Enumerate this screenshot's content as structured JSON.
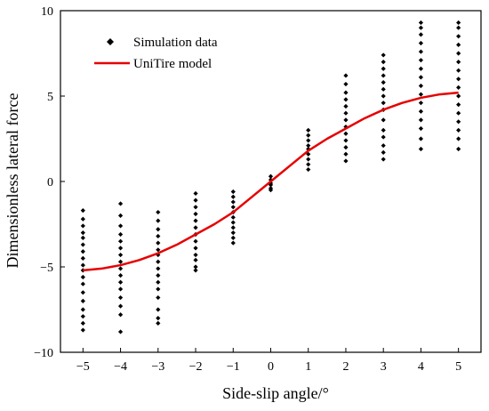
{
  "chart_data": {
    "type": "scatter",
    "title": "",
    "xlabel": "Side-slip angle/°",
    "ylabel": "Dimensionless lateral force",
    "xlim": [
      -5.6,
      5.6
    ],
    "ylim": [
      -10,
      10
    ],
    "xticks": [
      -5,
      -4,
      -3,
      -2,
      -1,
      0,
      1,
      2,
      3,
      4,
      5
    ],
    "yticks": [
      -10,
      -5,
      0,
      5,
      10
    ],
    "grid": false,
    "legend_position": "top-left",
    "series": [
      {
        "name": "Simulation data",
        "kind": "scatter",
        "color": "#000000",
        "groups": [
          {
            "x": -5,
            "y": [
              -1.7,
              -2.2,
              -2.6,
              -3.0,
              -3.3,
              -3.7,
              -4.1,
              -4.5,
              -4.9,
              -5.2,
              -5.6,
              -6.0,
              -6.5,
              -7.0,
              -7.5,
              -7.9,
              -8.3,
              -8.7
            ]
          },
          {
            "x": -4,
            "y": [
              -1.3,
              -2.0,
              -2.6,
              -3.1,
              -3.5,
              -3.9,
              -4.3,
              -4.7,
              -5.1,
              -5.5,
              -5.9,
              -6.3,
              -6.8,
              -7.3,
              -7.8,
              -8.8
            ]
          },
          {
            "x": -3,
            "y": [
              -1.8,
              -2.3,
              -2.8,
              -3.2,
              -3.6,
              -4.0,
              -4.3,
              -4.7,
              -5.1,
              -5.5,
              -5.9,
              -6.3,
              -6.8,
              -7.5,
              -8.0,
              -8.3
            ]
          },
          {
            "x": -2,
            "y": [
              -0.7,
              -1.1,
              -1.5,
              -1.9,
              -2.3,
              -2.7,
              -3.1,
              -3.5,
              -3.9,
              -4.3,
              -4.6,
              -5.0,
              -5.2
            ]
          },
          {
            "x": -1,
            "y": [
              -0.6,
              -0.9,
              -1.2,
              -1.5,
              -1.8,
              -2.1,
              -2.4,
              -2.7,
              -3.0,
              -3.3,
              -3.6
            ]
          },
          {
            "x": 0,
            "y": [
              0.3,
              0.1,
              -0.1,
              -0.2,
              -0.4,
              -0.5
            ]
          },
          {
            "x": 1,
            "y": [
              0.7,
              1.0,
              1.3,
              1.6,
              1.9,
              2.1,
              2.4,
              2.7,
              3.0
            ]
          },
          {
            "x": 2,
            "y": [
              1.2,
              1.6,
              2.0,
              2.4,
              2.8,
              3.2,
              3.6,
              4.0,
              4.4,
              4.8,
              5.2,
              5.7,
              6.2
            ]
          },
          {
            "x": 3,
            "y": [
              1.3,
              1.7,
              2.1,
              2.6,
              3.0,
              3.6,
              4.2,
              4.6,
              5.0,
              5.4,
              5.8,
              6.2,
              6.6,
              7.0,
              7.4
            ]
          },
          {
            "x": 4,
            "y": [
              1.9,
              2.5,
              3.1,
              3.6,
              4.1,
              4.6,
              5.1,
              5.6,
              6.1,
              6.6,
              7.1,
              7.6,
              8.1,
              8.6,
              9.0,
              9.3
            ]
          },
          {
            "x": 5,
            "y": [
              1.9,
              2.5,
              3.0,
              3.5,
              4.0,
              4.5,
              5.0,
              5.5,
              6.0,
              6.5,
              7.0,
              7.5,
              8.0,
              8.5,
              9.0,
              9.3
            ]
          }
        ]
      },
      {
        "name": "UniTire model",
        "kind": "line",
        "color": "#e60000",
        "x": [
          -5,
          -4.5,
          -4,
          -3.5,
          -3,
          -2.5,
          -2,
          -1.5,
          -1,
          -0.5,
          0,
          0.5,
          1,
          1.5,
          2,
          2.5,
          3,
          3.5,
          4,
          4.5,
          5
        ],
        "y": [
          -5.2,
          -5.1,
          -4.9,
          -4.6,
          -4.2,
          -3.7,
          -3.1,
          -2.5,
          -1.8,
          -0.9,
          0.0,
          0.9,
          1.8,
          2.5,
          3.1,
          3.7,
          4.2,
          4.6,
          4.9,
          5.1,
          5.2
        ]
      }
    ]
  }
}
